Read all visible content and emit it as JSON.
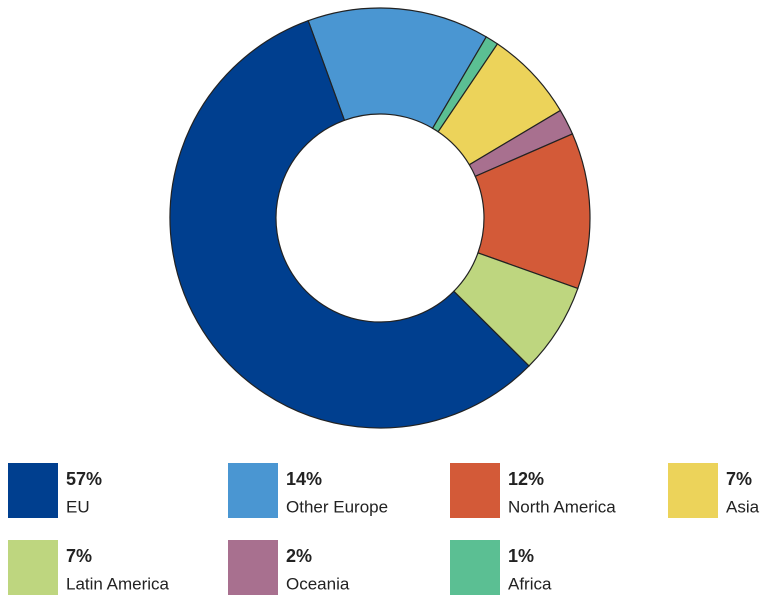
{
  "chart_data": {
    "type": "donut",
    "categories": [
      "EU",
      "Other Europe",
      "North America",
      "Asia",
      "Latin America",
      "Oceania",
      "Africa"
    ],
    "values": [
      57,
      14,
      12,
      7,
      7,
      2,
      1
    ],
    "value_labels": [
      "57%",
      "14%",
      "12%",
      "7%",
      "7%",
      "2%",
      "1%"
    ],
    "colors": [
      "#003f8f",
      "#4a96d2",
      "#d35a38",
      "#ecd35a",
      "#bed67f",
      "#a8708f",
      "#5bbf93"
    ]
  }
}
